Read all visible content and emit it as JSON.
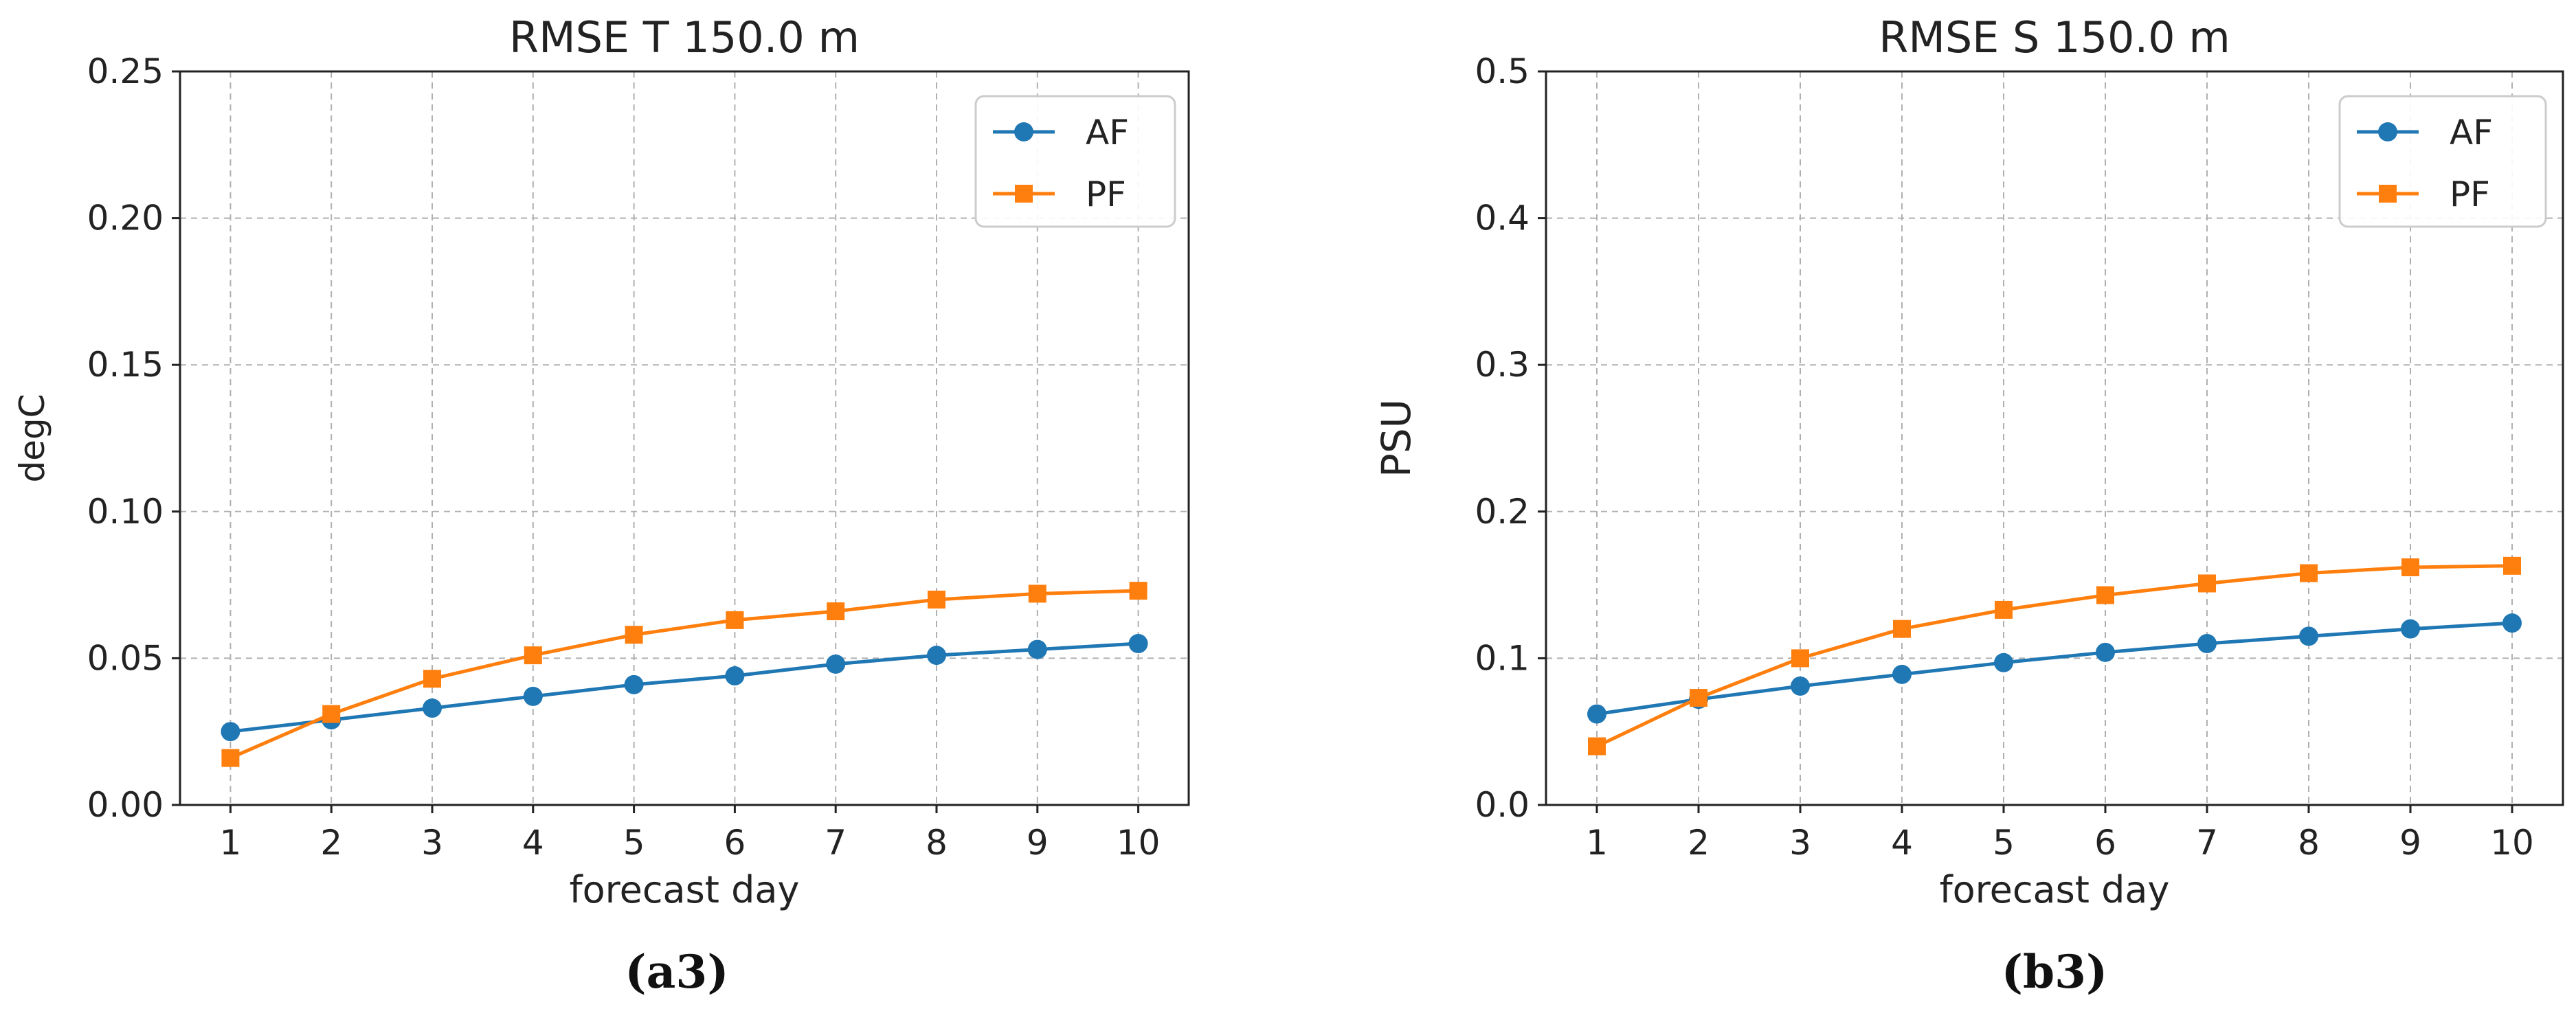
{
  "chart_data": [
    {
      "type": "line",
      "title": "RMSE T 150.0 m",
      "xlabel": "forecast day",
      "ylabel": "degC",
      "x": [
        1,
        2,
        3,
        4,
        5,
        6,
        7,
        8,
        9,
        10
      ],
      "xlim": [
        0.5,
        10.5
      ],
      "ylim": [
        0,
        0.25
      ],
      "xticks": [
        "1",
        "2",
        "3",
        "4",
        "5",
        "6",
        "7",
        "8",
        "9",
        "10"
      ],
      "yticks": [
        "0.00",
        "0.05",
        "0.10",
        "0.15",
        "0.20",
        "0.25"
      ],
      "grid": true,
      "legend_position": "top-right",
      "series": [
        {
          "name": "AF",
          "color": "#1f77b4",
          "marker": "circle",
          "values": [
            0.025,
            0.029,
            0.033,
            0.037,
            0.041,
            0.044,
            0.048,
            0.051,
            0.053,
            0.055
          ]
        },
        {
          "name": "PF",
          "color": "#ff7f0e",
          "marker": "square",
          "values": [
            0.016,
            0.031,
            0.043,
            0.051,
            0.058,
            0.063,
            0.066,
            0.07,
            0.072,
            0.073
          ]
        }
      ],
      "caption": "(a3)"
    },
    {
      "type": "line",
      "title": "RMSE S 150.0 m",
      "xlabel": "forecast day",
      "ylabel": "PSU",
      "x": [
        1,
        2,
        3,
        4,
        5,
        6,
        7,
        8,
        9,
        10
      ],
      "xlim": [
        0.5,
        10.5
      ],
      "ylim": [
        0,
        0.5
      ],
      "xticks": [
        "1",
        "2",
        "3",
        "4",
        "5",
        "6",
        "7",
        "8",
        "9",
        "10"
      ],
      "yticks": [
        "0.0",
        "0.1",
        "0.2",
        "0.3",
        "0.4",
        "0.5"
      ],
      "grid": true,
      "legend_position": "top-right",
      "series": [
        {
          "name": "AF",
          "color": "#1f77b4",
          "marker": "circle",
          "values": [
            0.062,
            0.072,
            0.081,
            0.089,
            0.097,
            0.104,
            0.11,
            0.115,
            0.12,
            0.124
          ]
        },
        {
          "name": "PF",
          "color": "#ff7f0e",
          "marker": "square",
          "values": [
            0.04,
            0.073,
            0.1,
            0.12,
            0.133,
            0.143,
            0.151,
            0.158,
            0.162,
            0.163
          ]
        }
      ],
      "caption": "(b3)"
    }
  ]
}
